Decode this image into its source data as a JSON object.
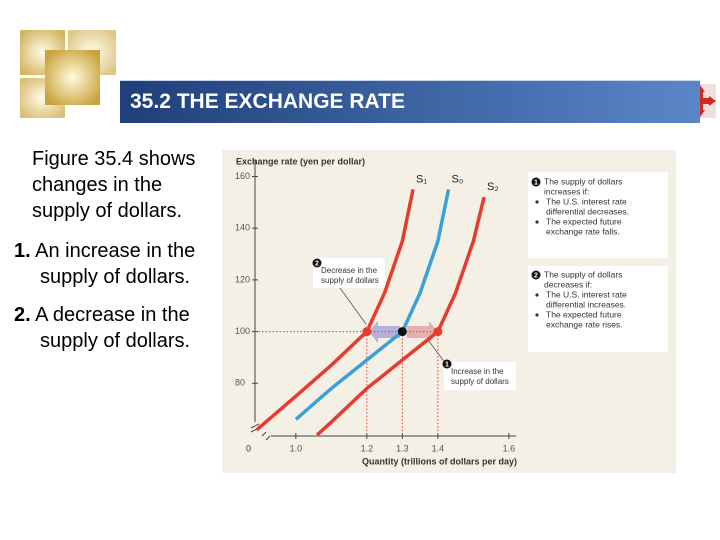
{
  "title": "35.2 THE EXCHANGE RATE",
  "body": {
    "intro": "Figure 35.4 shows changes in the supply of dollars.",
    "items": [
      {
        "number": "1.",
        "text": "An increase in the supply of dollars."
      },
      {
        "number": "2.",
        "text": "A decrease in the supply of dollars."
      }
    ]
  },
  "chart_data": {
    "type": "line",
    "ylabel": "Exchange rate (yen per dollar)",
    "xlabel": "Quantity (trillions of dollars per day)",
    "origin_label": "0",
    "xlim": [
      0.885,
      1.62
    ],
    "ylim": [
      59.6,
      166
    ],
    "xticks": [
      {
        "value": 1,
        "label": "1.0"
      },
      1.2,
      1.3,
      1.4,
      1.6
    ],
    "yticks": [
      80,
      100,
      120,
      140,
      160
    ],
    "series": [
      {
        "name": "S₁",
        "color": "#e63b2e",
        "x": [
          0.89,
          1.0,
          1.1,
          1.2,
          1.25,
          1.3,
          1.33
        ],
        "values": [
          62,
          75,
          87,
          100,
          115,
          135,
          155
        ]
      },
      {
        "name": "S₀",
        "color": "#3aa0d8",
        "x": [
          1.0,
          1.1,
          1.2,
          1.3,
          1.35,
          1.4,
          1.43
        ],
        "values": [
          66,
          78,
          89,
          100,
          115,
          135,
          155
        ]
      },
      {
        "name": "S₂",
        "color": "#e63b2e",
        "x": [
          1.06,
          1.1,
          1.2,
          1.3,
          1.4,
          1.45,
          1.5,
          1.53
        ],
        "values": [
          60,
          65,
          78,
          89,
          100,
          115,
          135,
          152
        ]
      }
    ],
    "points": [
      {
        "x": 1.2,
        "y": 100,
        "color": "#e63b2e"
      },
      {
        "x": 1.3,
        "y": 100,
        "color": "#111111"
      },
      {
        "x": 1.4,
        "y": 100,
        "color": "#e63b2e"
      }
    ],
    "callouts": [
      {
        "number": "2",
        "lines": [
          "Decrease in the",
          "supply of dollars"
        ]
      },
      {
        "number": "1",
        "lines": [
          "Increase in the",
          "supply of dollars"
        ]
      }
    ],
    "notes": [
      {
        "number": "1",
        "lines": [
          "The supply of dollars",
          "increases if:"
        ],
        "bullets": [
          [
            "The U.S. interest rate",
            "differential decreases."
          ],
          [
            "The expected future",
            "exchange rate falls."
          ]
        ]
      },
      {
        "number": "2",
        "lines": [
          "The supply of dollars",
          "decreases if:"
        ],
        "bullets": [
          [
            "The U.S. interest rate",
            "differential increases."
          ],
          [
            "The expected future",
            "exchange rate rises."
          ]
        ]
      }
    ]
  }
}
